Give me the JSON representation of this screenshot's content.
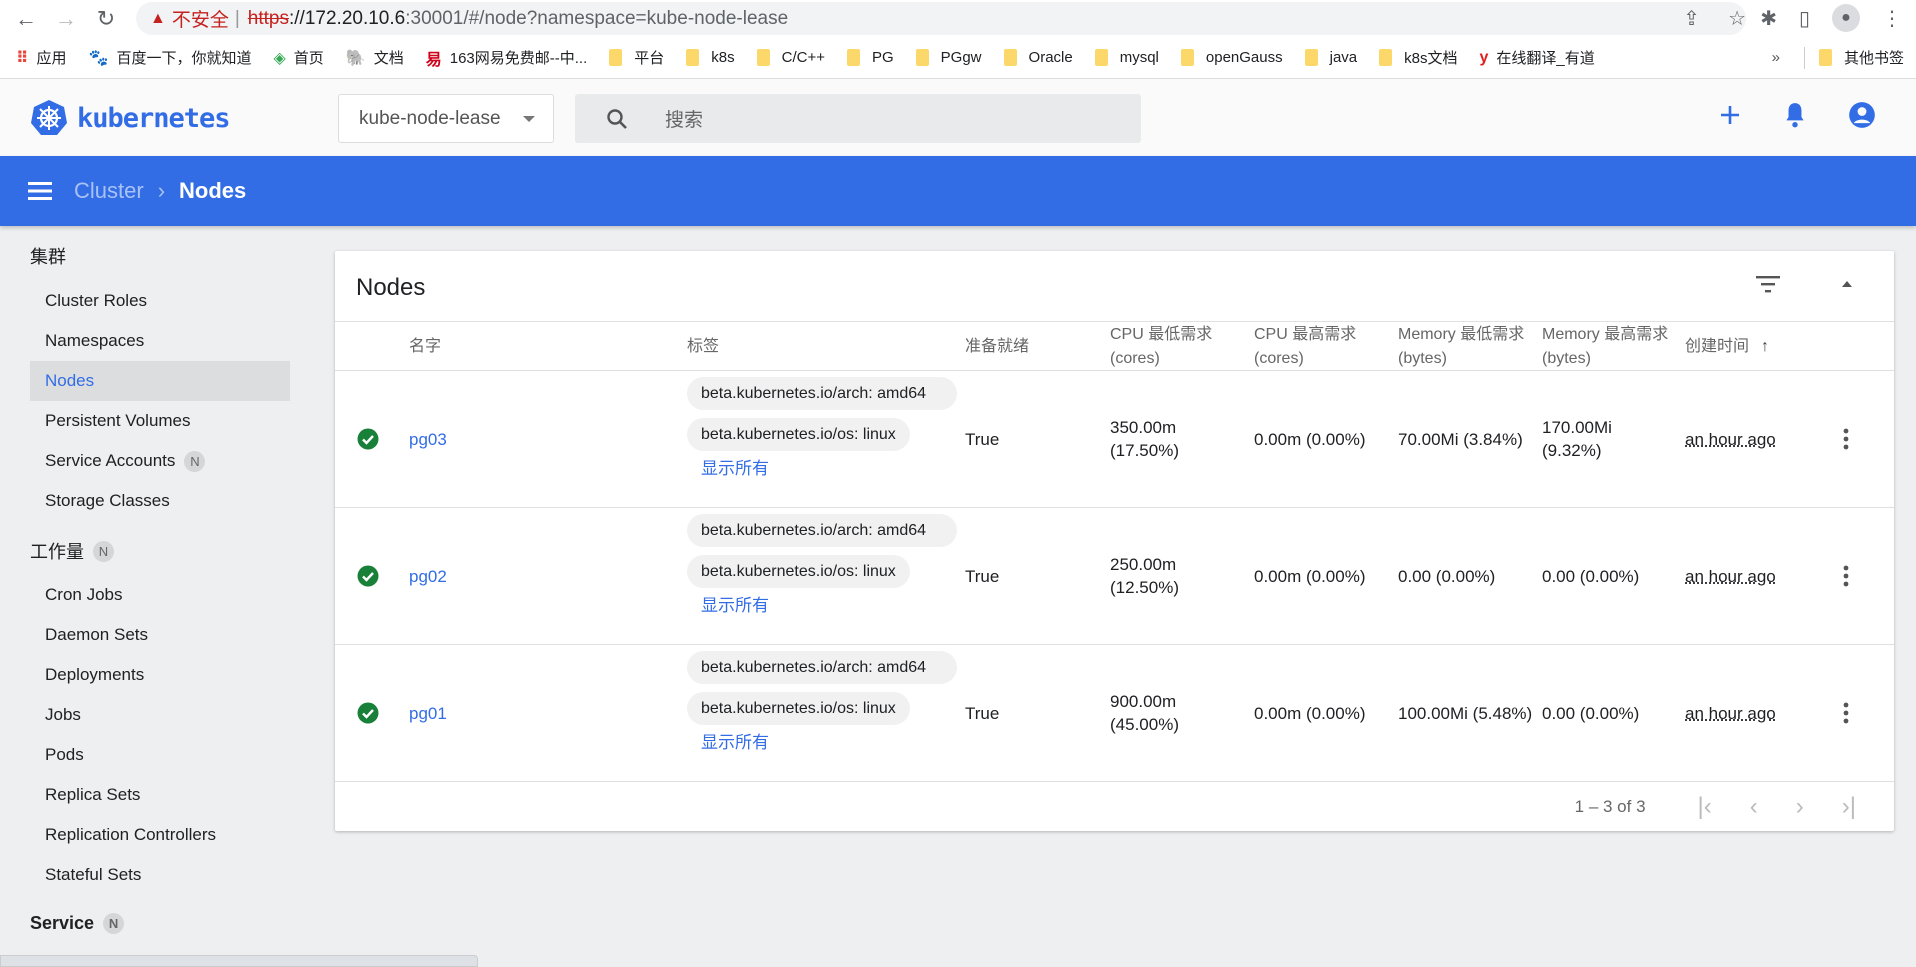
{
  "browser": {
    "url_insecure_label": "不安全",
    "url_protocol": "https",
    "url_host": "://172.20.10.6",
    "url_rest": ":30001/#/node?namespace=kube-node-lease",
    "bookmarks": [
      {
        "label": "应用",
        "icon": "apps-grid-icon"
      },
      {
        "label": "百度一下，你就知道",
        "icon": "baidu-icon"
      },
      {
        "label": "首页",
        "icon": "site-icon"
      },
      {
        "label": "文档",
        "icon": "postgres-icon"
      },
      {
        "label": "163网易免费邮--中...",
        "icon": "netease-icon"
      },
      {
        "label": "平台",
        "icon": "folder-icon"
      },
      {
        "label": "k8s",
        "icon": "folder-icon"
      },
      {
        "label": "C/C++",
        "icon": "folder-icon"
      },
      {
        "label": "PG",
        "icon": "folder-icon"
      },
      {
        "label": "PGgw",
        "icon": "folder-icon"
      },
      {
        "label": "Oracle",
        "icon": "folder-icon"
      },
      {
        "label": "mysql",
        "icon": "folder-icon"
      },
      {
        "label": "openGauss",
        "icon": "folder-icon"
      },
      {
        "label": "java",
        "icon": "folder-icon"
      },
      {
        "label": "k8s文档",
        "icon": "folder-icon"
      },
      {
        "label": "在线翻译_有道",
        "icon": "youdao-icon"
      }
    ],
    "more_bookmarks": "»",
    "other_bookmarks": "其他书签"
  },
  "header": {
    "logo_text": "kubernetes",
    "namespace": "kube-node-lease",
    "search_placeholder": "搜索"
  },
  "breadcrumb": {
    "parent": "Cluster",
    "current": "Nodes"
  },
  "sidebar": {
    "cluster_section": "集群",
    "cluster_items": [
      {
        "label": "Cluster Roles"
      },
      {
        "label": "Namespaces"
      },
      {
        "label": "Nodes",
        "active": true
      },
      {
        "label": "Persistent Volumes"
      },
      {
        "label": "Service Accounts",
        "badge": "N"
      },
      {
        "label": "Storage Classes"
      }
    ],
    "workload_section": "工作量",
    "workload_badge": "N",
    "workload_items": [
      {
        "label": "Cron Jobs"
      },
      {
        "label": "Daemon Sets"
      },
      {
        "label": "Deployments"
      },
      {
        "label": "Jobs"
      },
      {
        "label": "Pods"
      },
      {
        "label": "Replica Sets"
      },
      {
        "label": "Replication Controllers"
      },
      {
        "label": "Stateful Sets"
      }
    ],
    "service_section": "Service",
    "service_badge": "N"
  },
  "card": {
    "title": "Nodes",
    "columns": [
      "名字",
      "标签",
      "准备就绪",
      "CPU 最低需求 (cores)",
      "CPU 最高需求 (cores)",
      "Memory 最低需求 (bytes)",
      "Memory 最高需求 (bytes)",
      "创建时间"
    ],
    "sort_indicator": "↑",
    "rows": [
      {
        "status": "ready",
        "name": "pg03",
        "label_arch": "beta.kubernetes.io/arch: amd64",
        "label_os": "beta.kubernetes.io/os: linux",
        "show_all": "显示所有",
        "ready": "True",
        "cpu_req": "350.00m (17.50%)",
        "cpu_lim": "0.00m (0.00%)",
        "mem_req": "70.00Mi (3.84%)",
        "mem_lim": "170.00Mi (9.32%)",
        "created": "an hour ago"
      },
      {
        "status": "ready",
        "name": "pg02",
        "label_arch": "beta.kubernetes.io/arch: amd64",
        "label_os": "beta.kubernetes.io/os: linux",
        "show_all": "显示所有",
        "ready": "True",
        "cpu_req": "250.00m (12.50%)",
        "cpu_lim": "0.00m (0.00%)",
        "mem_req": "0.00 (0.00%)",
        "mem_lim": "0.00 (0.00%)",
        "created": "an hour ago"
      },
      {
        "status": "ready",
        "name": "pg01",
        "label_arch": "beta.kubernetes.io/arch: amd64",
        "label_os": "beta.kubernetes.io/os: linux",
        "show_all": "显示所有",
        "ready": "True",
        "cpu_req": "900.00m (45.00%)",
        "cpu_lim": "0.00m (0.00%)",
        "mem_req": "100.00Mi (5.48%)",
        "mem_lim": "0.00 (0.00%)",
        "created": "an hour ago"
      }
    ],
    "pagination": "1 – 3 of 3"
  },
  "colors": {
    "accent": "#326de6",
    "ready": "#188038",
    "sidebar_bg": "#eeeff1"
  }
}
